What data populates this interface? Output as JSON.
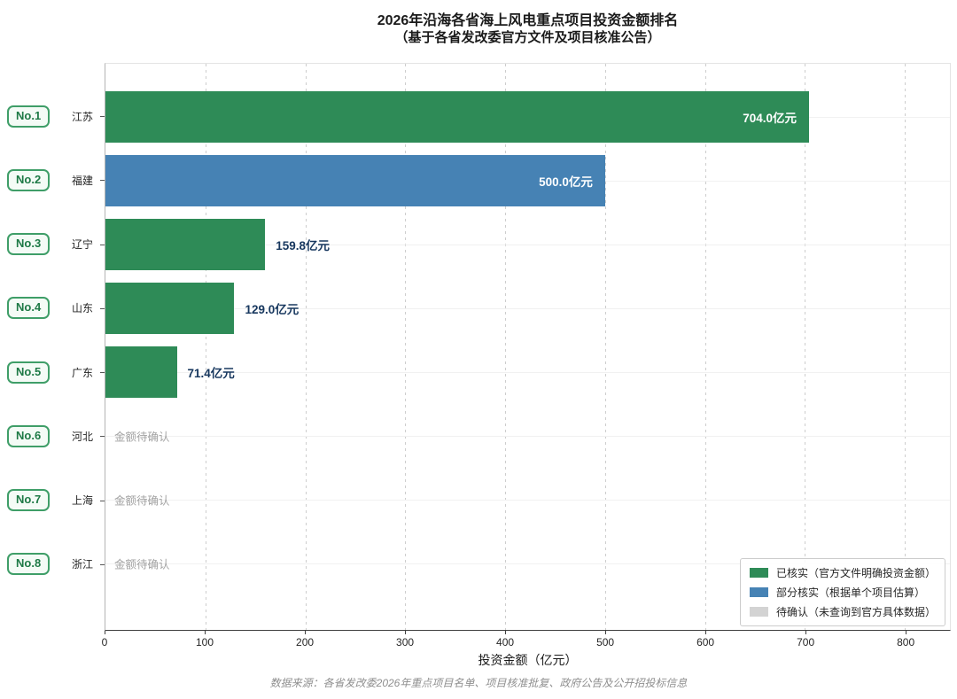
{
  "colors": {
    "verified": "#2e8b57",
    "partial": "#4682b4",
    "pending": "#d3d3d3",
    "value_label_outside": "#17375e",
    "pending_label": "#a3a3a3",
    "badge_border": "#3f9e68",
    "badge_text": "#1e7a46"
  },
  "chart_data": {
    "type": "bar",
    "orientation": "horizontal",
    "title": "2026年沿海各省海上风电重点项目投资金额排名",
    "subtitle": "（基于各省发改委官方文件及项目核准公告）",
    "xlabel": "投资金额（亿元）",
    "xlim": [
      0,
      845
    ],
    "xticks": [
      0,
      100,
      200,
      300,
      400,
      500,
      600,
      700,
      800
    ],
    "grid": "vertical-dashed",
    "legend_position": "lower-right",
    "source_note": "数据来源：各省发改委2026年重点项目名单、项目核准批复、政府公告及公开招投标信息",
    "rows": [
      {
        "rank": "No.1",
        "province": "江苏",
        "value": 704.0,
        "value_label": "704.0亿元",
        "status": "verified",
        "label_position": "inside"
      },
      {
        "rank": "No.2",
        "province": "福建",
        "value": 500.0,
        "value_label": "500.0亿元",
        "status": "partial",
        "label_position": "inside"
      },
      {
        "rank": "No.3",
        "province": "辽宁",
        "value": 159.8,
        "value_label": "159.8亿元",
        "status": "verified",
        "label_position": "outside"
      },
      {
        "rank": "No.4",
        "province": "山东",
        "value": 129.0,
        "value_label": "129.0亿元",
        "status": "verified",
        "label_position": "outside"
      },
      {
        "rank": "No.5",
        "province": "广东",
        "value": 71.4,
        "value_label": "71.4亿元",
        "status": "verified",
        "label_position": "outside"
      },
      {
        "rank": "No.6",
        "province": "河北",
        "value": null,
        "value_label": "金额待确认",
        "status": "pending",
        "label_position": "outside"
      },
      {
        "rank": "No.7",
        "province": "上海",
        "value": null,
        "value_label": "金额待确认",
        "status": "pending",
        "label_position": "outside"
      },
      {
        "rank": "No.8",
        "province": "浙江",
        "value": null,
        "value_label": "金额待确认",
        "status": "pending",
        "label_position": "outside"
      }
    ],
    "legend": [
      {
        "label": "已核实（官方文件明确投资金额）",
        "color": "#2e8b57",
        "status": "verified"
      },
      {
        "label": "部分核实（根据单个项目估算）",
        "color": "#4682b4",
        "status": "partial"
      },
      {
        "label": "待确认（未查询到官方具体数据）",
        "color": "#d3d3d3",
        "status": "pending"
      }
    ]
  }
}
